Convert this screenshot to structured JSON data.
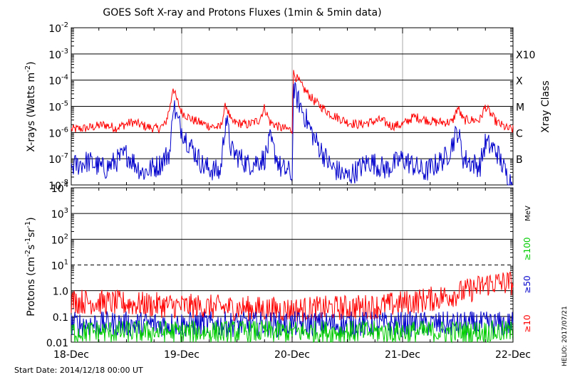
{
  "chart_data": [
    {
      "type": "line",
      "panel": "xrays",
      "title": "GOES Soft X-ray and Protons Fluxes   (1min & 5min data)",
      "ylabel": "X-rays (Watts m",
      "ylabel_sup": "-2",
      "ylabel_close": ")",
      "right_axis_label": "Xray Class",
      "yscale": "log",
      "ylim": [
        1e-08,
        0.01
      ],
      "y_tick_exponents": [
        "-8",
        "-7",
        "-6",
        "-5",
        "-4",
        "-3",
        "-2"
      ],
      "class_labels": [
        {
          "label": "B",
          "y": 1e-07
        },
        {
          "label": "C",
          "y": 1e-06
        },
        {
          "label": "M",
          "y": 1e-05
        },
        {
          "label": "X",
          "y": 0.0001
        },
        {
          "label": "X10",
          "y": 0.001
        }
      ],
      "x_days": [
        "18-Dec",
        "19-Dec",
        "20-Dec",
        "21-Dec",
        "22-Dec"
      ],
      "series": [
        {
          "color": "#ff0000",
          "points": [
            [
              0.0,
              1.3e-06
            ],
            [
              0.15,
              1.5e-06
            ],
            [
              0.3,
              2e-06
            ],
            [
              0.4,
              1.5e-06
            ],
            [
              0.55,
              2.5e-06
            ],
            [
              0.7,
              1.6e-06
            ],
            [
              0.78,
              1.4e-06
            ],
            [
              0.85,
              2e-06
            ],
            [
              0.9,
              1.2e-05
            ],
            [
              0.92,
              6e-05
            ],
            [
              0.95,
              2e-05
            ],
            [
              1.0,
              6e-06
            ],
            [
              1.1,
              3e-06
            ],
            [
              1.25,
              1.8e-06
            ],
            [
              1.35,
              1.5e-06
            ],
            [
              1.4,
              1.2e-05
            ],
            [
              1.45,
              2.5e-06
            ],
            [
              1.6,
              2e-06
            ],
            [
              1.7,
              3e-06
            ],
            [
              1.75,
              9e-06
            ],
            [
              1.8,
              2.5e-06
            ],
            [
              1.9,
              1.5e-06
            ],
            [
              1.98,
              1.3e-06
            ],
            [
              2.0,
              1.3e-06
            ],
            [
              2.01,
              0.00019
            ],
            [
              2.1,
              5e-05
            ],
            [
              2.2,
              1.6e-05
            ],
            [
              2.35,
              5e-06
            ],
            [
              2.5,
              2.5e-06
            ],
            [
              2.6,
              2e-06
            ],
            [
              2.8,
              3e-06
            ],
            [
              2.9,
              1.8e-06
            ],
            [
              3.0,
              2e-06
            ],
            [
              3.1,
              4e-06
            ],
            [
              3.3,
              2.5e-06
            ],
            [
              3.45,
              2.5e-06
            ],
            [
              3.5,
              9e-06
            ],
            [
              3.55,
              3e-06
            ],
            [
              3.7,
              3e-06
            ],
            [
              3.75,
              1e-05
            ],
            [
              3.85,
              2.5e-06
            ],
            [
              3.95,
              1.4e-06
            ],
            [
              4.0,
              1.3e-06
            ]
          ],
          "noise": 0.18
        },
        {
          "color": "#0000cc",
          "points": [
            [
              0.0,
              5e-08
            ],
            [
              0.15,
              8e-08
            ],
            [
              0.3,
              4e-08
            ],
            [
              0.5,
              1.5e-07
            ],
            [
              0.65,
              3e-08
            ],
            [
              0.8,
              6e-08
            ],
            [
              0.9,
              2e-07
            ],
            [
              0.92,
              1.6e-05
            ],
            [
              0.96,
              3e-06
            ],
            [
              1.05,
              5e-07
            ],
            [
              1.2,
              5e-08
            ],
            [
              1.35,
              3e-08
            ],
            [
              1.4,
              4e-06
            ],
            [
              1.45,
              2e-07
            ],
            [
              1.6,
              6e-08
            ],
            [
              1.75,
              1e-07
            ],
            [
              1.8,
              5e-07
            ],
            [
              1.9,
              4e-08
            ],
            [
              1.99,
              3e-08
            ],
            [
              2.0,
              1e-08
            ],
            [
              2.01,
              4.5e-05
            ],
            [
              2.1,
              6e-06
            ],
            [
              2.2,
              6e-07
            ],
            [
              2.35,
              5e-08
            ],
            [
              2.5,
              2e-08
            ],
            [
              2.7,
              8e-08
            ],
            [
              2.85,
              4e-08
            ],
            [
              3.0,
              1e-07
            ],
            [
              3.2,
              3e-08
            ],
            [
              3.4,
              1.2e-07
            ],
            [
              3.5,
              1.2e-06
            ],
            [
              3.55,
              1e-07
            ],
            [
              3.7,
              5e-08
            ],
            [
              3.75,
              4e-07
            ],
            [
              3.85,
              2e-07
            ],
            [
              3.95,
              2e-08
            ],
            [
              4.0,
              1e-08
            ]
          ],
          "noise": 0.45
        }
      ]
    },
    {
      "type": "line",
      "panel": "protons",
      "ylabel": "Protons (cm",
      "ylabel_sup1": "-2",
      "ylabel_mid1": "s",
      "ylabel_sup2": "-1",
      "ylabel_mid2": "sr",
      "ylabel_sup3": "-1",
      "ylabel_close": ")",
      "right_labels": [
        "MeV",
        "≥100",
        "≥50",
        "≥10"
      ],
      "right_label_colors": [
        "#000000",
        "#00cc00",
        "#0000cc",
        "#ff0000"
      ],
      "yscale": "log",
      "ylim": [
        0.01,
        10000
      ],
      "y_tick_labels": [
        "10",
        "10",
        "10",
        "10",
        "1.0",
        "0.1",
        "0.01"
      ],
      "y_tick_label_sups": [
        "4",
        "3",
        "2",
        "1",
        "",
        "",
        ""
      ],
      "x_days": [
        "18-Dec",
        "19-Dec",
        "20-Dec",
        "21-Dec",
        "22-Dec"
      ],
      "dashed_threshold": 10,
      "series": [
        {
          "color": "#ff0000",
          "points": [
            [
              0.0,
              0.4
            ],
            [
              1.0,
              0.25
            ],
            [
              2.0,
              0.18
            ],
            [
              2.8,
              0.25
            ],
            [
              3.3,
              0.5
            ],
            [
              3.6,
              1.0
            ],
            [
              3.8,
              2.0
            ],
            [
              4.0,
              2.0
            ]
          ],
          "noise": 0.5
        },
        {
          "color": "#0000cc",
          "points": [
            [
              0.0,
              0.05
            ],
            [
              4.0,
              0.05
            ]
          ],
          "noise": 0.5
        },
        {
          "color": "#00cc00",
          "points": [
            [
              0.0,
              0.025
            ],
            [
              4.0,
              0.025
            ]
          ],
          "noise": 0.45
        }
      ]
    }
  ],
  "footer": {
    "start_date": "Start Date: 2014/12/18 00:00 UT",
    "credit": "HELIO: 2017/07/21"
  }
}
